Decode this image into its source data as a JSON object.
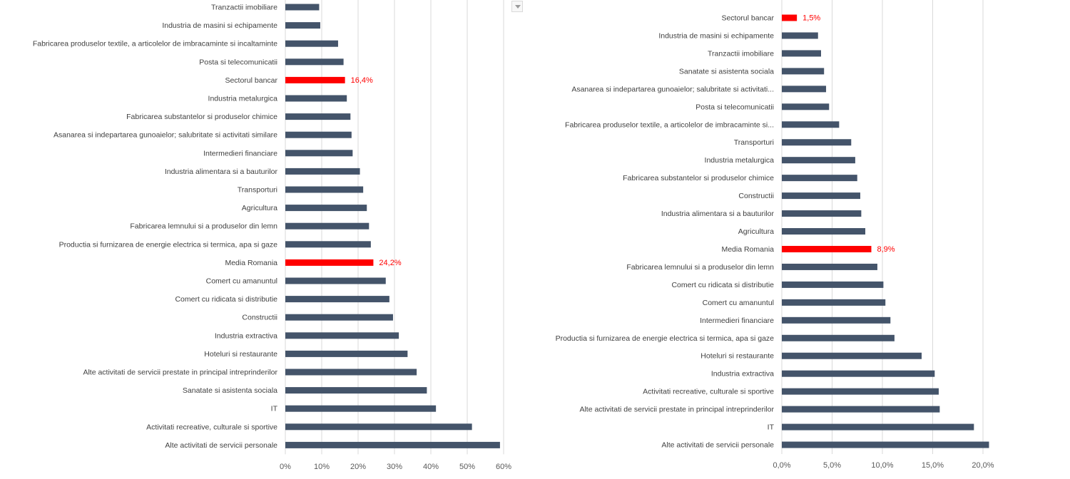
{
  "colors": {
    "bar": "#44546a",
    "highlight": "#ff0000",
    "grid": "#d9d9d9",
    "text": "#404040"
  },
  "filter_button": {
    "icon": "dropdown-arrow-icon"
  },
  "chart_data": [
    {
      "type": "bar",
      "orientation": "horizontal",
      "xlim": [
        0,
        60
      ],
      "x_ticks": [
        "0%",
        "10%",
        "20%",
        "30%",
        "40%",
        "50%",
        "60%"
      ],
      "grid": true,
      "categories": [
        "Tranzactii imobiliare",
        "Industria de masini si echipamente",
        "Fabricarea produselor textile, a articolelor de imbracaminte si incaltaminte",
        "Posta si telecomunicatii",
        "Sectorul bancar",
        "Industria metalurgica",
        "Fabricarea substantelor si produselor chimice",
        "Asanarea si indepartarea gunoaielor; salubritate si activitati similare",
        "Intermedieri financiare",
        "Industria alimentara si a bauturilor",
        "Transporturi",
        "Agricultura",
        "Fabricarea lemnului si a produselor din lemn",
        "Productia si furnizarea de energie electrica si termica, apa si gaze",
        "Media Romania",
        "Comert cu amanuntul",
        "Comert cu ridicata si distributie",
        "Constructii",
        "Industria extractiva",
        "Hoteluri si restaurante",
        "Alte activitati de servicii prestate in principal intreprinderilor",
        "Sanatate si asistenta sociala",
        "IT",
        "Activitati recreative, culturale si sportive",
        "Alte activitati de servicii personale"
      ],
      "values": [
        9.3,
        9.6,
        14.5,
        16.0,
        16.4,
        16.9,
        17.9,
        18.2,
        18.5,
        20.5,
        21.4,
        22.4,
        23.0,
        23.5,
        24.2,
        27.6,
        28.6,
        29.6,
        31.2,
        33.6,
        36.1,
        38.9,
        41.4,
        51.3,
        59.0
      ],
      "highlight": {
        "Sectorul bancar": "16,4%",
        "Media Romania": "24,2%"
      }
    },
    {
      "type": "bar",
      "orientation": "horizontal",
      "xlim": [
        0,
        20
      ],
      "x_ticks": [
        "0,0%",
        "5,0%",
        "10,0%",
        "15,0%",
        "20,0%"
      ],
      "grid": true,
      "categories": [
        "Sectorul bancar",
        "Industria de masini si echipamente",
        "Tranzactii imobiliare",
        "Sanatate si asistenta sociala",
        "Asanarea si indepartarea gunoaielor; salubritate si activitati...",
        "Posta si telecomunicatii",
        "Fabricarea produselor textile, a articolelor de imbracaminte si...",
        "Transporturi",
        "Industria metalurgica",
        "Fabricarea substantelor si produselor chimice",
        "Constructii",
        "Industria alimentara si a bauturilor",
        "Agricultura",
        "Media Romania",
        "Fabricarea lemnului si a produselor din lemn",
        "Comert cu ridicata si distributie",
        "Comert cu amanuntul",
        "Intermedieri financiare",
        "Productia si furnizarea de energie electrica si termica, apa si gaze",
        "Hoteluri si restaurante",
        "Industria extractiva",
        "Activitati recreative, culturale si sportive",
        "Alte activitati de servicii prestate in principal intreprinderilor",
        "IT",
        "Alte activitati de servicii personale"
      ],
      "values": [
        1.5,
        3.6,
        3.9,
        4.2,
        4.4,
        4.7,
        5.7,
        6.9,
        7.3,
        7.5,
        7.8,
        7.9,
        8.3,
        8.9,
        9.5,
        10.1,
        10.3,
        10.8,
        11.2,
        13.9,
        15.2,
        15.6,
        15.7,
        19.1,
        20.6
      ],
      "highlight": {
        "Sectorul bancar": "1,5%",
        "Media Romania": "8,9%"
      }
    }
  ]
}
